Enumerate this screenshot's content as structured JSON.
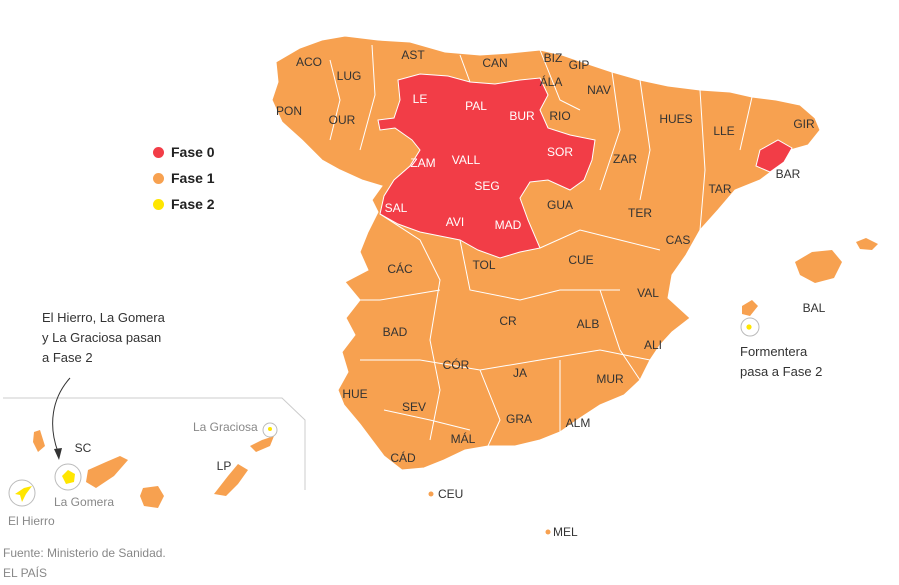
{
  "colors": {
    "fase0": "#f23d47",
    "fase1": "#f7a150",
    "fase2": "#ffe600",
    "border": "#ffffff"
  },
  "legend": [
    {
      "label": "Fase 0",
      "color": "#f23d47"
    },
    {
      "label": "Fase 1",
      "color": "#f7a150"
    },
    {
      "label": "Fase 2",
      "color": "#ffe600"
    }
  ],
  "provinces": {
    "aco": "ACO",
    "lug": "LUG",
    "pon": "PON",
    "our": "OUR",
    "ast": "AST",
    "can": "CAN",
    "biz": "BIZ",
    "gip": "GIP",
    "ala": "ÁLA",
    "nav": "NAV",
    "le": "LE",
    "pal": "PAL",
    "bur": "BUR",
    "rio": "RIO",
    "hues": "HUES",
    "lle": "LLE",
    "gir": "GIR",
    "bar": "BAR",
    "zam": "ZAM",
    "vall": "VALL",
    "sor": "SOR",
    "zar": "ZAR",
    "tar": "TAR",
    "seg": "SEG",
    "sal": "SAL",
    "avi": "AVI",
    "mad": "MAD",
    "gua": "GUA",
    "ter": "TER",
    "cas": "CAS",
    "cac": "CÁC",
    "tol": "TOL",
    "cue": "CUE",
    "val": "VAL",
    "bal": "BAL",
    "bad": "BAD",
    "cr": "CR",
    "alb": "ALB",
    "ali": "ALI",
    "cor": "CÓR",
    "ja": "JA",
    "mur": "MUR",
    "hue": "HUE",
    "sev": "SEV",
    "gra": "GRA",
    "alm": "ALM",
    "mal": "MÁL",
    "cad": "CÁD",
    "ceu": "CEU",
    "mel": "MEL",
    "sc": "SC",
    "lp": "LP"
  },
  "islands": {
    "la_graciosa": "La Graciosa",
    "la_gomera": "La Gomera",
    "el_hierro": "El Hierro",
    "formentera_line1": "Formentera",
    "formentera_line2": "pasa a Fase 2"
  },
  "canarias_note": [
    "El Hierro, La Gomera",
    "y La Graciosa pasan",
    "a Fase 2"
  ],
  "source": [
    "Fuente: Ministerio de Sanidad.",
    "EL PAÍS"
  ]
}
